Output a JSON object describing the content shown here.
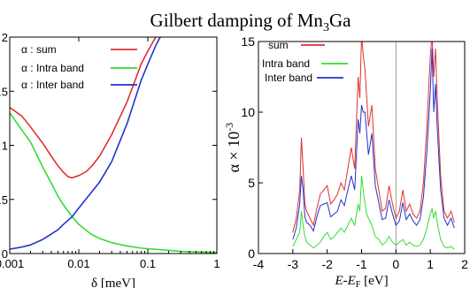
{
  "title_main": "Gilbert damping of Mn",
  "title_sub": "3",
  "title_tail": "Ga",
  "colors": {
    "sum": "#e03030",
    "intra": "#33dd33",
    "inter": "#2233cc",
    "axis": "#000000",
    "zero_line": "#888888"
  },
  "chart_data": [
    {
      "type": "line",
      "xscale": "log",
      "xlabel": "δ [meV]",
      "ylabel": "",
      "xlim": [
        0.001,
        1
      ],
      "ylim": [
        0,
        2
      ],
      "x_ticks": [
        0.001,
        0.01,
        0.1,
        1
      ],
      "x_tick_labels": [
        "0.001",
        "0.01",
        "0.1",
        "1"
      ],
      "y_ticks": [
        0,
        0.5,
        1,
        1.5,
        2
      ],
      "y_tick_labels": [
        "0",
        "0.5",
        "1",
        "1.5",
        "2"
      ],
      "legend": {
        "placement": "top-right",
        "entries": [
          "α : sum",
          "α : Intra band",
          "α : Inter band"
        ]
      },
      "series": [
        {
          "name": "α : sum",
          "key": "sum",
          "x": [
            0.001,
            0.0015,
            0.002,
            0.003,
            0.004,
            0.005,
            0.006,
            0.007,
            0.008,
            0.01,
            0.013,
            0.016,
            0.02,
            0.03,
            0.05,
            0.08,
            0.1,
            0.13,
            0.16
          ],
          "y": [
            1.35,
            1.27,
            1.17,
            1.02,
            0.9,
            0.81,
            0.75,
            0.71,
            0.7,
            0.72,
            0.76,
            0.82,
            0.9,
            1.1,
            1.4,
            1.75,
            1.87,
            2.0,
            2.08
          ]
        },
        {
          "name": "α : Intra band",
          "key": "intra",
          "x": [
            0.001,
            0.0015,
            0.002,
            0.003,
            0.004,
            0.005,
            0.006,
            0.008,
            0.01,
            0.015,
            0.02,
            0.03,
            0.05,
            0.08,
            0.1,
            0.2,
            0.3,
            0.5,
            1.0
          ],
          "y": [
            1.3,
            1.14,
            1.03,
            0.8,
            0.65,
            0.53,
            0.45,
            0.34,
            0.27,
            0.18,
            0.14,
            0.1,
            0.07,
            0.05,
            0.045,
            0.03,
            0.02,
            0.015,
            0.01
          ]
        },
        {
          "name": "α : Inter band",
          "key": "inter",
          "x": [
            0.001,
            0.0015,
            0.002,
            0.003,
            0.004,
            0.005,
            0.006,
            0.008,
            0.01,
            0.015,
            0.02,
            0.03,
            0.05,
            0.08,
            0.1,
            0.13,
            0.16
          ],
          "y": [
            0.04,
            0.06,
            0.08,
            0.13,
            0.18,
            0.22,
            0.27,
            0.34,
            0.42,
            0.56,
            0.66,
            0.85,
            1.2,
            1.6,
            1.75,
            1.92,
            2.03
          ]
        }
      ]
    },
    {
      "type": "line",
      "xlabel_main": "E-E",
      "xlabel_sub": "F",
      "xlabel_unit": " [eV]",
      "ylabel_main": "α × 10",
      "ylabel_sup": "-3",
      "xlim": [
        -4,
        2
      ],
      "ylim": [
        0,
        15
      ],
      "x_ticks": [
        -4,
        -3,
        -2,
        -1,
        0,
        1,
        2
      ],
      "x_tick_labels": [
        "-4",
        "-3",
        "-2",
        "-1",
        "0",
        "1",
        "2"
      ],
      "y_ticks": [
        0,
        5,
        10,
        15
      ],
      "y_tick_labels": [
        "0",
        "5",
        "10",
        "15"
      ],
      "legend": {
        "placement": "top-left",
        "entries": [
          "sum",
          "Intra band",
          "Inter band"
        ]
      },
      "series": [
        {
          "name": "sum",
          "key": "sum",
          "x": [
            -3.0,
            -2.9,
            -2.8,
            -2.75,
            -2.7,
            -2.65,
            -2.6,
            -2.5,
            -2.4,
            -2.3,
            -2.2,
            -2.1,
            -2.0,
            -1.9,
            -1.8,
            -1.7,
            -1.6,
            -1.5,
            -1.4,
            -1.3,
            -1.2,
            -1.1,
            -1.05,
            -1.0,
            -0.95,
            -0.9,
            -0.85,
            -0.8,
            -0.7,
            -0.6,
            -0.5,
            -0.4,
            -0.3,
            -0.2,
            -0.1,
            0.0,
            0.1,
            0.2,
            0.3,
            0.4,
            0.5,
            0.6,
            0.7,
            0.8,
            0.9,
            1.0,
            1.05,
            1.1,
            1.15,
            1.2,
            1.3,
            1.4,
            1.5,
            1.6,
            1.7
          ],
          "y": [
            1.5,
            2.5,
            4.5,
            8.2,
            6.0,
            3.5,
            3.0,
            2.5,
            2.0,
            3.2,
            4.2,
            4.5,
            4.8,
            3.5,
            3.8,
            4.2,
            5.0,
            4.5,
            6.0,
            7.5,
            6.0,
            12.5,
            11.0,
            15.5,
            14.0,
            13.0,
            11.0,
            9.0,
            10.5,
            6.0,
            4.5,
            3.0,
            3.2,
            4.8,
            3.5,
            2.5,
            3.0,
            4.5,
            3.0,
            3.5,
            2.8,
            2.5,
            3.0,
            5.0,
            9.0,
            14.0,
            15.5,
            12.5,
            14.5,
            11.0,
            5.5,
            3.0,
            2.5,
            3.0,
            2.2
          ]
        },
        {
          "name": "Intra band",
          "key": "intra",
          "x": [
            -3.0,
            -2.9,
            -2.8,
            -2.75,
            -2.7,
            -2.65,
            -2.6,
            -2.5,
            -2.4,
            -2.3,
            -2.2,
            -2.1,
            -2.0,
            -1.9,
            -1.8,
            -1.7,
            -1.6,
            -1.5,
            -1.4,
            -1.3,
            -1.2,
            -1.1,
            -1.05,
            -1.0,
            -0.95,
            -0.9,
            -0.85,
            -0.8,
            -0.7,
            -0.6,
            -0.5,
            -0.4,
            -0.3,
            -0.2,
            -0.1,
            0.0,
            0.1,
            0.2,
            0.3,
            0.4,
            0.5,
            0.6,
            0.7,
            0.8,
            0.9,
            1.0,
            1.05,
            1.1,
            1.15,
            1.2,
            1.3,
            1.4,
            1.5,
            1.6,
            1.7
          ],
          "y": [
            0.5,
            1.0,
            1.5,
            3.0,
            2.0,
            1.2,
            0.8,
            0.6,
            0.4,
            0.6,
            0.8,
            1.2,
            1.5,
            1.0,
            1.2,
            1.5,
            1.8,
            1.5,
            2.0,
            2.5,
            2.0,
            3.5,
            3.0,
            5.5,
            4.5,
            3.5,
            2.8,
            2.5,
            2.0,
            1.2,
            1.0,
            0.6,
            0.8,
            1.2,
            0.8,
            0.6,
            0.8,
            1.0,
            0.6,
            0.8,
            0.6,
            0.5,
            0.6,
            1.0,
            1.8,
            2.8,
            3.2,
            2.5,
            3.0,
            2.2,
            1.0,
            0.5,
            0.4,
            0.5,
            0.3
          ]
        },
        {
          "name": "Inter band",
          "key": "inter",
          "x": [
            -3.0,
            -2.9,
            -2.8,
            -2.75,
            -2.7,
            -2.65,
            -2.6,
            -2.5,
            -2.4,
            -2.3,
            -2.2,
            -2.1,
            -2.0,
            -1.9,
            -1.8,
            -1.7,
            -1.6,
            -1.5,
            -1.4,
            -1.3,
            -1.2,
            -1.1,
            -1.05,
            -1.0,
            -0.95,
            -0.9,
            -0.85,
            -0.8,
            -0.7,
            -0.6,
            -0.5,
            -0.4,
            -0.3,
            -0.2,
            -0.1,
            0.0,
            0.1,
            0.2,
            0.3,
            0.4,
            0.5,
            0.6,
            0.7,
            0.8,
            0.9,
            1.0,
            1.05,
            1.1,
            1.15,
            1.2,
            1.3,
            1.4,
            1.5,
            1.6,
            1.7
          ],
          "y": [
            1.0,
            1.8,
            3.5,
            5.5,
            4.5,
            2.6,
            2.2,
            2.0,
            1.6,
            2.6,
            3.4,
            3.5,
            3.6,
            2.6,
            2.8,
            3.0,
            3.8,
            3.4,
            4.5,
            5.5,
            4.5,
            9.5,
            8.5,
            10.5,
            10.0,
            10.0,
            8.5,
            7.0,
            8.5,
            4.8,
            3.6,
            2.4,
            2.5,
            3.8,
            2.8,
            2.0,
            2.3,
            3.6,
            2.4,
            2.8,
            2.3,
            2.0,
            2.4,
            4.0,
            7.2,
            11.5,
            14.5,
            10.0,
            12.0,
            9.0,
            4.5,
            2.5,
            2.0,
            2.5,
            1.8
          ]
        }
      ]
    }
  ]
}
